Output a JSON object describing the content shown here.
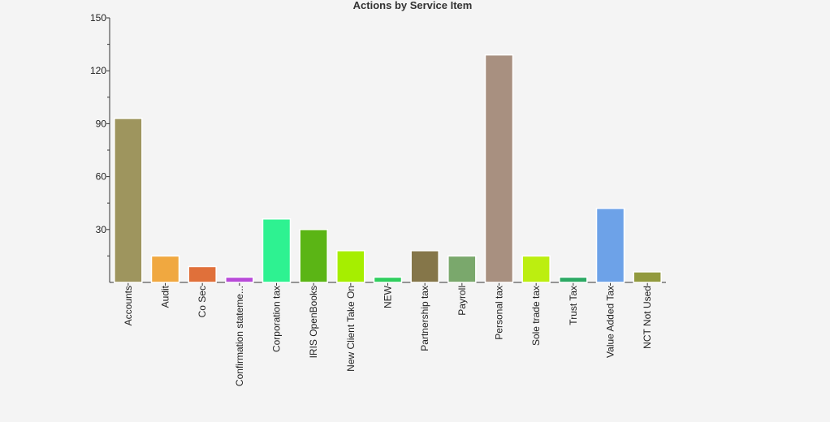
{
  "chart_data": {
    "type": "bar",
    "title": "Actions by Service Item",
    "xlabel": "",
    "ylabel": "",
    "ylim": [
      0,
      150
    ],
    "yticks": [
      30,
      60,
      90,
      120,
      150
    ],
    "grid": false,
    "legend": "none",
    "categories": [
      "Accounts",
      "Audit",
      "Co Sec",
      "Confirmation stateme...",
      "Corporation tax",
      "IRIS OpenBooks",
      "New Client Take On",
      "NEW",
      "Partnership tax",
      "Payroll",
      "Personal tax",
      "Sole trade tax",
      "Trust Tax",
      "Value Added Tax",
      "NCT Not Used"
    ],
    "values": [
      93,
      15,
      9,
      3,
      36,
      30,
      18,
      3,
      18,
      15,
      129,
      15,
      3,
      42,
      6
    ],
    "colors": [
      "#9e955e",
      "#f0a840",
      "#e0703a",
      "#b84ad8",
      "#2ef291",
      "#5bb515",
      "#a6ee00",
      "#2fce5e",
      "#857649",
      "#7aa86c",
      "#a89080",
      "#bcee10",
      "#2ca964",
      "#6da2e8",
      "#929a3e"
    ]
  }
}
